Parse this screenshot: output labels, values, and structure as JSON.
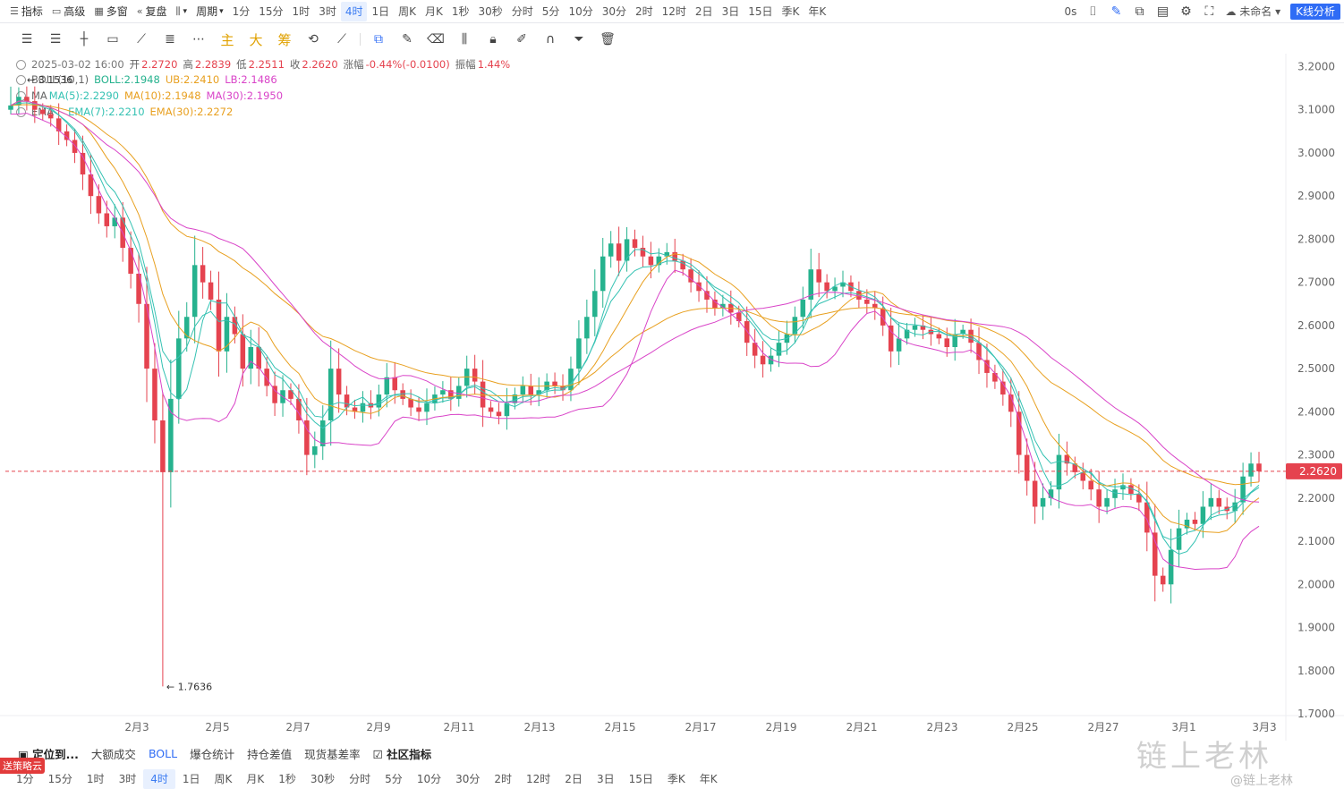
{
  "topbar": {
    "indicators": "指标",
    "advanced": "高级",
    "multi_window": "多窗",
    "replay": "复盘",
    "period": "周期",
    "timeframes": [
      "1分",
      "15分",
      "1时",
      "3时",
      "4时",
      "1日",
      "周K",
      "月K",
      "1秒",
      "30秒",
      "分时",
      "5分",
      "10分",
      "30分",
      "2时",
      "12时",
      "2日",
      "3日",
      "15日",
      "季K",
      "年K"
    ],
    "active_timeframe": "4时",
    "countdown": "0s",
    "layout_name": "未命名",
    "k_analysis": "K线分析"
  },
  "toolbar2": {
    "main": "主",
    "big": "大",
    "chips": "筹"
  },
  "info": {
    "datetime": "2025-03-02 16:00",
    "open_label": "开",
    "open": "2.2720",
    "high_label": "高",
    "high": "2.2839",
    "low_label": "低",
    "low": "2.2511",
    "close_label": "收",
    "close": "2.2620",
    "change_label": "涨幅",
    "change": "-0.44%(-0.0100)",
    "amp_label": "振幅",
    "amp": "1.44%",
    "boll_label": "BOLL(10,1)",
    "boll_mid": "BOLL:2.1948",
    "boll_ub": "UB:2.2410",
    "boll_lb": "LB:2.1486",
    "ma_label": "MA",
    "ma5": "MA(5):2.2290",
    "ma10": "MA(10):2.1948",
    "ma30": "MA(30):2.1950",
    "ema_label": "EMA",
    "ema7": "EMA(7):2.2210",
    "ema30": "EMA(30):2.2272",
    "high_marker": "3.1536"
  },
  "colors": {
    "up": "#26b28e",
    "down": "#e5434f",
    "ma5": "#35c2b3",
    "ma10": "#e8a020",
    "ma30": "#d944c8",
    "boll_mid": "#e8a020",
    "ema7": "#35c2b3",
    "ema30": "#e8a020"
  },
  "chart_data": {
    "type": "candlestick",
    "ylim": [
      1.7,
      3.23
    ],
    "y_ticks": [
      3.2,
      3.1,
      3.0,
      2.9,
      2.8,
      2.7,
      2.6,
      2.5,
      2.4,
      2.3,
      2.2,
      2.1,
      2.0,
      1.9,
      1.8,
      1.7
    ],
    "x_ticks": [
      "2月3",
      "2月5",
      "2月7",
      "2月9",
      "2月11",
      "2月13",
      "2月15",
      "2月17",
      "2月19",
      "2月21",
      "2月23",
      "2月25",
      "2月27",
      "3月1",
      "3月3"
    ],
    "last_price": "2.2620",
    "min_marker": "1.7636",
    "closes": [
      3.11,
      3.13,
      3.12,
      3.1,
      3.09,
      3.08,
      3.05,
      3.03,
      3.0,
      2.95,
      2.9,
      2.86,
      2.83,
      2.85,
      2.78,
      2.72,
      2.65,
      2.5,
      2.38,
      2.26,
      2.43,
      2.57,
      2.62,
      2.74,
      2.7,
      2.66,
      2.54,
      2.62,
      2.58,
      2.5,
      2.55,
      2.5,
      2.46,
      2.42,
      2.45,
      2.43,
      2.38,
      2.3,
      2.32,
      2.38,
      2.5,
      2.44,
      2.41,
      2.4,
      2.42,
      2.41,
      2.44,
      2.48,
      2.45,
      2.43,
      2.41,
      2.4,
      2.42,
      2.44,
      2.45,
      2.43,
      2.46,
      2.5,
      2.47,
      2.41,
      2.4,
      2.39,
      2.42,
      2.44,
      2.46,
      2.44,
      2.45,
      2.47,
      2.46,
      2.45,
      2.5,
      2.57,
      2.62,
      2.68,
      2.76,
      2.79,
      2.75,
      2.8,
      2.78,
      2.76,
      2.74,
      2.76,
      2.77,
      2.75,
      2.73,
      2.7,
      2.68,
      2.66,
      2.64,
      2.65,
      2.63,
      2.61,
      2.56,
      2.53,
      2.51,
      2.53,
      2.56,
      2.58,
      2.62,
      2.66,
      2.73,
      2.7,
      2.68,
      2.69,
      2.7,
      2.68,
      2.66,
      2.65,
      2.64,
      2.6,
      2.54,
      2.57,
      2.59,
      2.6,
      2.59,
      2.58,
      2.57,
      2.55,
      2.58,
      2.59,
      2.56,
      2.52,
      2.49,
      2.47,
      2.44,
      2.4,
      2.3,
      2.24,
      2.18,
      2.2,
      2.22,
      2.3,
      2.28,
      2.26,
      2.24,
      2.22,
      2.18,
      2.2,
      2.22,
      2.23,
      2.21,
      2.19,
      2.12,
      2.02,
      2.0,
      2.08,
      2.13,
      2.15,
      2.14,
      2.18,
      2.2,
      2.18,
      2.17,
      2.19,
      2.25,
      2.28,
      2.262
    ]
  }
}
